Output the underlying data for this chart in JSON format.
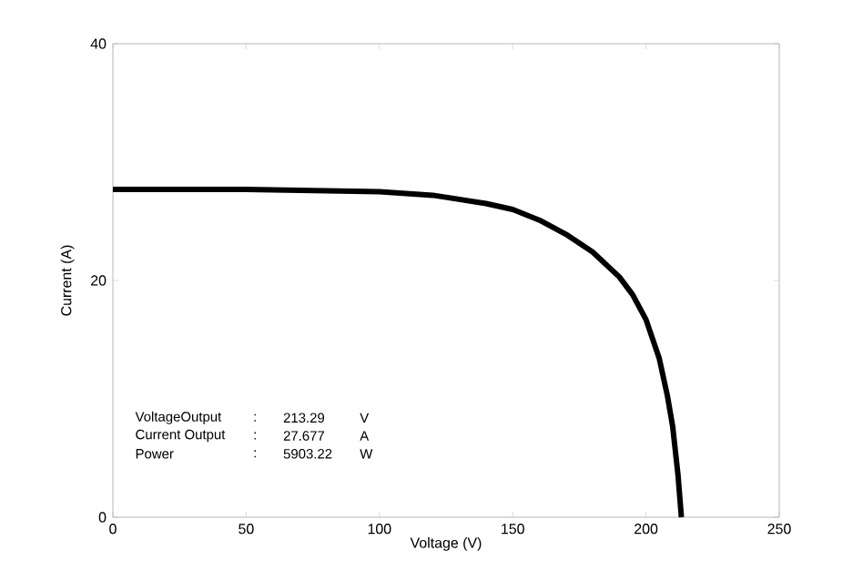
{
  "chart_data": {
    "type": "line",
    "xlabel": "Voltage (V)",
    "ylabel": "Current (A)",
    "x": [
      0,
      50,
      100,
      120,
      140,
      150,
      160,
      170,
      180,
      190,
      195,
      200,
      205,
      208,
      210,
      212,
      213.29
    ],
    "series": [
      {
        "color": "#000000",
        "values": [
          27.7,
          27.7,
          27.5,
          27.2,
          26.5,
          26.0,
          25.1,
          23.9,
          22.4,
          20.3,
          18.8,
          16.7,
          13.4,
          10.3,
          7.7,
          3.6,
          0
        ]
      }
    ],
    "xlim": [
      0,
      250
    ],
    "ylim": [
      0,
      40
    ],
    "xticks": [
      0,
      50,
      100,
      150,
      200,
      250
    ],
    "yticks": [
      0,
      20,
      40
    ],
    "grid": false,
    "marker": "none",
    "line_style": "solid",
    "annotations": [
      "VoltageOutput",
      ":",
      "213.29",
      "V",
      "Current Output",
      ":",
      "27.677",
      "A",
      "Power",
      ":",
      "5903.22",
      "W"
    ]
  }
}
